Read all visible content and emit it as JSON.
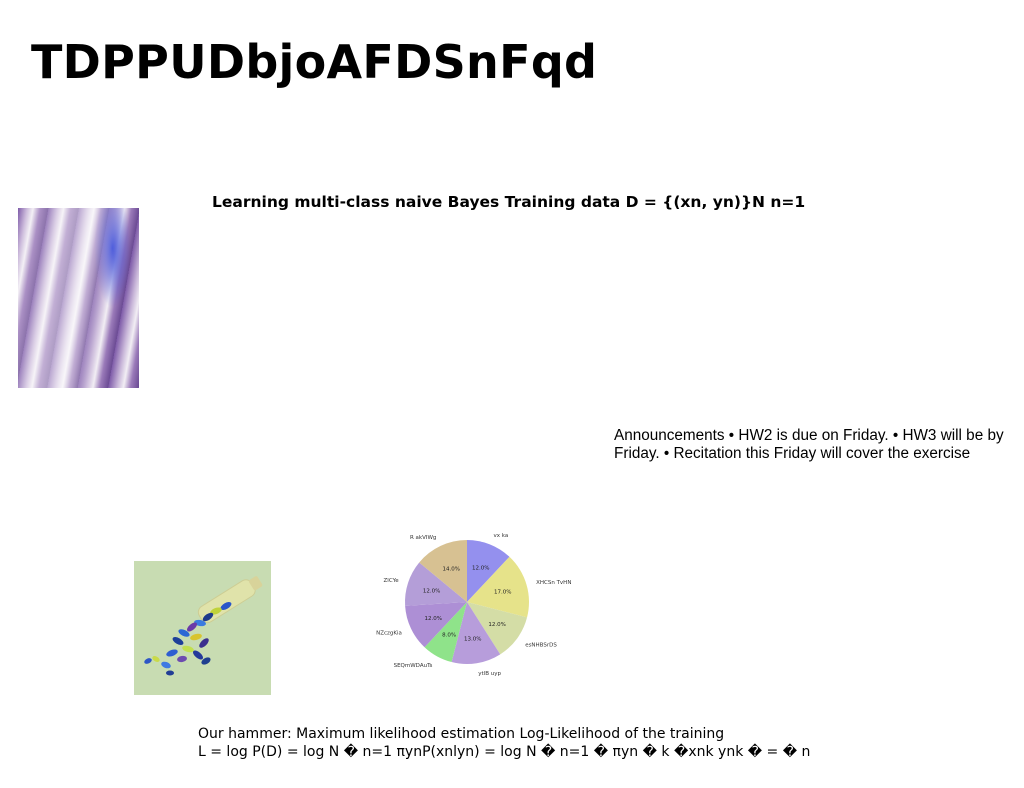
{
  "slide": {
    "title": "TDPPUDbjoAFDSnFqd",
    "subtitle": "Learning multi-class naive Bayes Training data D = {(xn, yn)}N n=1",
    "announcement": "Announcements • HW2 is due on Friday. • HW3 will be by Friday. • Recitation this Friday will cover the exercise",
    "hammer_line1": "Our hammer: Maximum likelihood estimation Log-Likelihood of the training",
    "hammer_line2": "L = log P(D) = log N � n=1 πynP(xnlyn) = log N � n=1 � πyn � k �xnk ynk � = � n"
  },
  "images": {
    "left_top": "abstract purple motion-blur photo",
    "left_bottom": "colorful capsules spilling from a glass bottle on green background"
  },
  "chart_data": {
    "type": "pie",
    "title": "",
    "categories": [
      "vx ka",
      "XHCSn TvHN",
      "esNHBSrDS",
      "ytlB uyp",
      "SEQmWDAuTs",
      "NZczgKia",
      "ZlCYe",
      "R akVIWg"
    ],
    "values": [
      12.0,
      17.0,
      12.0,
      13.0,
      8.0,
      12.0,
      12.0,
      14.0
    ],
    "labels": [
      "12.0%",
      "17.0%",
      "12.0%",
      "13.0%",
      "8.0%",
      "12.0%",
      "12.0%",
      "14.0%"
    ],
    "colors": [
      "#9490ee",
      "#e6e38a",
      "#d4dda6",
      "#b79ddb",
      "#8fe38a",
      "#ad8fd5",
      "#b49ed8",
      "#d7c192"
    ],
    "start_angle_deg": 90,
    "direction": "clockwise",
    "legend": "none"
  }
}
